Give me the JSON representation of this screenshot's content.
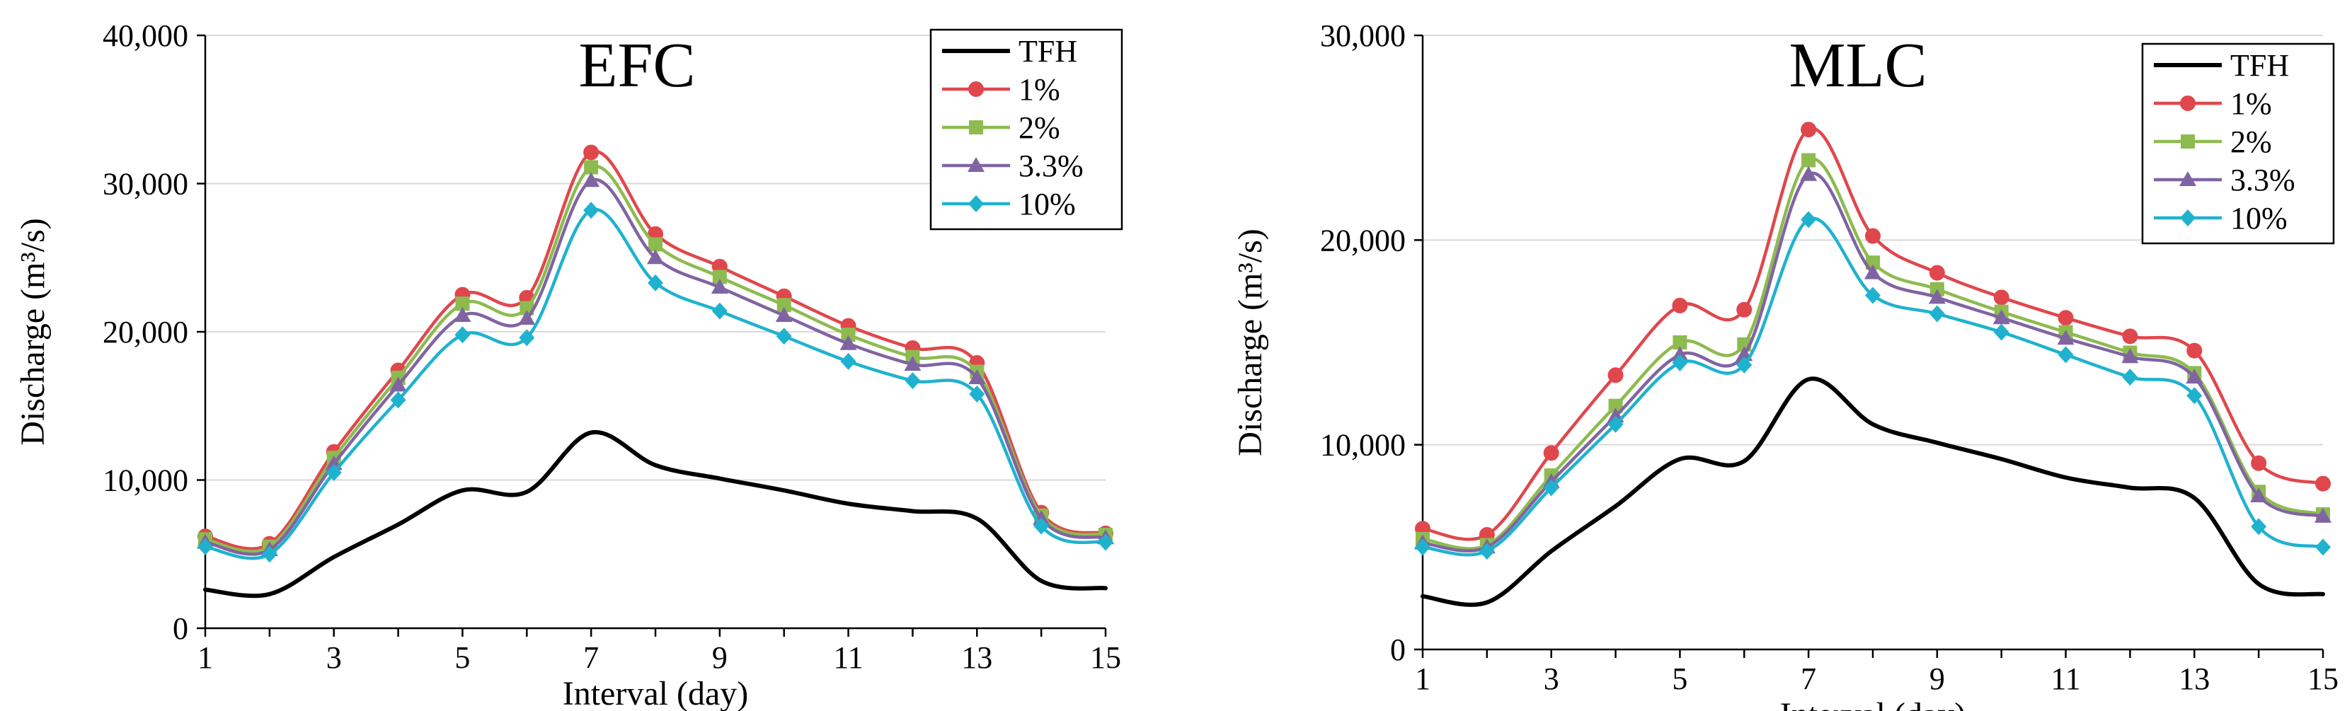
{
  "figure": {
    "style": {
      "axis_color": "#000000",
      "grid_color": "#d9d9d9",
      "series_colors": {
        "TFH": "#000000",
        "1%": "#e0474c",
        "2%": "#8dbb4f",
        "3.3%": "#8064a2",
        "10%": "#1fb2cf"
      },
      "marker_shapes": {
        "TFH": "none",
        "1%": "circle",
        "2%": "square",
        "3.3%": "triangle",
        "10%": "diamond"
      }
    }
  },
  "chart_data": [
    {
      "type": "line",
      "title": "EFC",
      "xlabel": "Interval (day)",
      "ylabel": "Discharge (m³/s)",
      "x": [
        1,
        2,
        3,
        4,
        5,
        6,
        7,
        8,
        9,
        10,
        11,
        12,
        13,
        14,
        15
      ],
      "x_tick_values": [
        1,
        3,
        5,
        7,
        9,
        11,
        13,
        15
      ],
      "x_tick_labels": [
        "1",
        "3",
        "5",
        "7",
        "9",
        "11",
        "13",
        "15"
      ],
      "xlim": [
        1,
        15
      ],
      "ylim": [
        0,
        40000
      ],
      "y_tick_values": [
        0,
        10000,
        20000,
        30000,
        40000
      ],
      "y_tick_labels": [
        "0",
        "10,000",
        "20,000",
        "30,000",
        "40,000"
      ],
      "grid": true,
      "legend_position": "top-right",
      "series": [
        {
          "name": "TFH",
          "values": [
            2600,
            2300,
            4800,
            7000,
            9300,
            9200,
            13200,
            11000,
            10100,
            9300,
            8400,
            7900,
            7400,
            3200,
            2700
          ]
        },
        {
          "name": "1%",
          "values": [
            6200,
            5700,
            11900,
            17400,
            22500,
            22300,
            32100,
            26600,
            24400,
            22400,
            20400,
            18900,
            17900,
            7800,
            6400
          ]
        },
        {
          "name": "2%",
          "values": [
            6000,
            5500,
            11500,
            16900,
            21900,
            21600,
            31100,
            25900,
            23700,
            21800,
            19800,
            18300,
            17300,
            7600,
            6300
          ]
        },
        {
          "name": "3.3%",
          "values": [
            5800,
            5300,
            11100,
            16400,
            21100,
            20900,
            30200,
            25000,
            23000,
            21100,
            19200,
            17800,
            16900,
            7400,
            6100
          ]
        },
        {
          "name": "10%",
          "values": [
            5500,
            5000,
            10500,
            15400,
            19800,
            19600,
            28200,
            23300,
            21400,
            19700,
            18000,
            16700,
            15800,
            6900,
            5800
          ]
        }
      ]
    },
    {
      "type": "line",
      "title": "MLC",
      "xlabel": "Interval (day)",
      "ylabel": "Discharge (m³/s)",
      "x": [
        1,
        2,
        3,
        4,
        5,
        6,
        7,
        8,
        9,
        10,
        11,
        12,
        13,
        14,
        15
      ],
      "x_tick_values": [
        1,
        3,
        5,
        7,
        9,
        11,
        13,
        15
      ],
      "x_tick_labels": [
        "1",
        "3",
        "5",
        "7",
        "9",
        "11",
        "13",
        "15"
      ],
      "xlim": [
        1,
        15
      ],
      "ylim": [
        0,
        30000
      ],
      "y_tick_values": [
        0,
        10000,
        20000,
        30000
      ],
      "y_tick_labels": [
        "0",
        "10,000",
        "20,000",
        "30,000"
      ],
      "grid": true,
      "legend_position": "top-right",
      "series": [
        {
          "name": "TFH",
          "values": [
            2600,
            2300,
            4800,
            7000,
            9300,
            9200,
            13200,
            11000,
            10100,
            9300,
            8400,
            7900,
            7400,
            3200,
            2700
          ]
        },
        {
          "name": "1%",
          "values": [
            5900,
            5600,
            9600,
            13400,
            16800,
            16600,
            25400,
            20200,
            18400,
            17200,
            16200,
            15300,
            14600,
            9100,
            8100
          ]
        },
        {
          "name": "2%",
          "values": [
            5400,
            5100,
            8500,
            11900,
            15000,
            14900,
            23900,
            18900,
            17600,
            16500,
            15500,
            14500,
            13500,
            7700,
            6600
          ]
        },
        {
          "name": "3.3%",
          "values": [
            5200,
            5000,
            8200,
            11400,
            14400,
            14400,
            23200,
            18400,
            17200,
            16200,
            15200,
            14300,
            13300,
            7500,
            6500
          ]
        },
        {
          "name": "10%",
          "values": [
            5000,
            4800,
            7900,
            11000,
            14000,
            13900,
            21000,
            17300,
            16400,
            15500,
            14400,
            13300,
            12400,
            6000,
            5000
          ]
        }
      ]
    }
  ]
}
